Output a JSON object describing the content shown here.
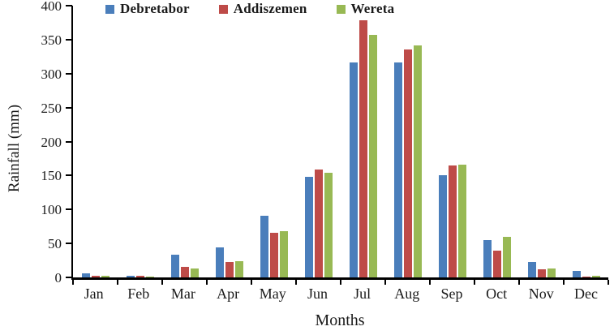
{
  "chart_data": {
    "type": "bar",
    "title": "",
    "xlabel": "Months",
    "ylabel": "Rainfall  (mm)",
    "categories": [
      "Jan",
      "Feb",
      "Mar",
      "Apr",
      "May",
      "Jun",
      "Jul",
      "Aug",
      "Sep",
      "Oct",
      "Nov",
      "Dec"
    ],
    "series": [
      {
        "name": "Debretabor",
        "color": "#4A7EBB",
        "values": [
          6,
          3,
          34,
          44,
          91,
          148,
          316,
          316,
          151,
          55,
          23,
          10
        ]
      },
      {
        "name": "Addiszemen",
        "color": "#BE4B48",
        "values": [
          3,
          2,
          15,
          23,
          66,
          159,
          379,
          336,
          165,
          40,
          12,
          1
        ]
      },
      {
        "name": "Wereta",
        "color": "#98B954",
        "values": [
          3,
          1,
          13,
          24,
          68,
          154,
          357,
          341,
          166,
          60,
          13,
          2
        ]
      }
    ],
    "ylim": [
      0,
      400
    ],
    "y_ticks": [
      0,
      50,
      100,
      150,
      200,
      250,
      300,
      350,
      400
    ],
    "grid": false,
    "legend_position": "top",
    "axis_color": "#000000",
    "text_color": "#1a1a1a"
  }
}
